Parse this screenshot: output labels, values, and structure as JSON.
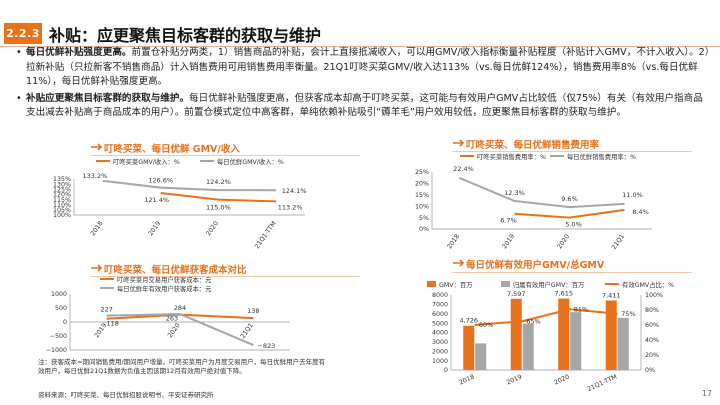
{
  "header": {
    "section_number": "2.2.3",
    "title": "补贴：应更聚焦目标客群的获取与维护"
  },
  "bullets": [
    {
      "lead": "每日优鲜补贴强度更高。",
      "text": "前置仓补贴分两类，1）销售商品的补贴，会计上直接抵减收入，可以用GMV/收入指标衡量补贴程度（补贴计入GMV，不计入收入）。2）拉新补贴（只拉新客不销售商品）计入销售费用可用销售费用率衡量。21Q1叮咚买菜GMV/收入达113%（vs.每日优鲜124%），销售费用率8%（vs.每日优鲜11%），每日优鲜补贴强度更高。"
    },
    {
      "lead": "补贴应更聚焦目标客群的获取与维护。",
      "text": "每日优鲜补贴强度更高，但获客成本却高于叮咚买菜，这可能与有效用户GMV占比较低（仅75%）有关（有效用户指商品支出减去补贴高于商品成本的用户）。前置仓模式定位中高客群，单纯依赖补贴吸引“薅羊毛”用户效用较低，应更聚焦目标客群的获取与维护。"
    }
  ],
  "chart_data": [
    {
      "type": "line",
      "title": "叮咚买菜、每日优鲜 GMV/收入",
      "categories": [
        "2018",
        "2019",
        "2020",
        "21Q1-TTM"
      ],
      "series": [
        {
          "name": "叮咚买菜GMV/收入：%",
          "values": [
            null,
            121.4,
            115.0,
            113.2
          ],
          "labels": [
            "",
            "121.4%",
            "115.0%",
            "113.2%"
          ],
          "color": "#e8711c"
        },
        {
          "name": "每日优鲜GMV/收入：%",
          "values": [
            133.2,
            126.6,
            124.2,
            124.1
          ],
          "labels": [
            "133.2%",
            "126.6%",
            "124.2%",
            "124.1%"
          ],
          "color": "#a6a6a6"
        }
      ],
      "ylim": [
        100,
        135
      ],
      "yticks": [
        "100%",
        "105%",
        "110%",
        "115%",
        "120%",
        "125%",
        "130%",
        "135%"
      ]
    },
    {
      "type": "line",
      "title": "叮咚买菜、每日优鲜销售费用率",
      "categories": [
        "2018",
        "2019",
        "2020",
        "21Q1"
      ],
      "series": [
        {
          "name": "叮咚买菜销售费用率：%",
          "values": [
            null,
            6.7,
            5.0,
            8.4
          ],
          "labels": [
            "",
            "6.7%",
            "5.0%",
            "8.4%"
          ],
          "color": "#e8711c"
        },
        {
          "name": "每日优鲜销售费用率：%",
          "values": [
            22.4,
            12.3,
            9.6,
            11.0
          ],
          "labels": [
            "22.4%",
            "12.3%",
            "9.6%",
            "11.0%"
          ],
          "color": "#a6a6a6"
        }
      ],
      "ylim": [
        0,
        25
      ],
      "yticks": [
        "0%",
        "5%",
        "10%",
        "15%",
        "20%",
        "25%"
      ]
    },
    {
      "type": "line",
      "title": "叮咚买菜、每日优鲜获客成本对比",
      "categories": [
        "2019",
        "2020",
        "21Q1"
      ],
      "series": [
        {
          "name": "叮咚买菜月交易用户获客成本：元",
          "values": [
            118,
            263,
            138
          ],
          "labels": [
            "118",
            "263",
            "138"
          ],
          "color": "#e8711c"
        },
        {
          "name": "每日优鲜年有效用户获客成本：元",
          "values": [
            227,
            284,
            -823
          ],
          "labels": [
            "227",
            "284",
            "−823"
          ],
          "color": "#a6a6a6"
        }
      ],
      "ylim": [
        -1000,
        1000
      ],
      "yticks": [
        "−1000",
        "−500",
        "0",
        "500",
        "1000"
      ]
    },
    {
      "type": "bar",
      "title": "每日优鲜有效用户GMV/总GMV",
      "categories": [
        "2018",
        "2019",
        "2020",
        "21Q1-TTM"
      ],
      "series": [
        {
          "name": "GMV：百万",
          "kind": "bar",
          "axis": "left",
          "values": [
            4726,
            7597,
            7615,
            7411
          ],
          "labels": [
            "4,726",
            "7,597",
            "7,615",
            "7,411"
          ],
          "color": "#e8711c"
        },
        {
          "name": "归属有效用户GMV：百万",
          "kind": "bar",
          "axis": "left",
          "values": [
            2840,
            4940,
            6170,
            5560
          ],
          "color": "#a6a6a6"
        },
        {
          "name": "有效GMV占比：%",
          "kind": "line",
          "axis": "right",
          "values": [
            60,
            65,
            81,
            75
          ],
          "labels": [
            "60%",
            "65%",
            "81%",
            "75%"
          ],
          "color": "#e8711c"
        }
      ],
      "ylim": [
        0,
        8000
      ],
      "yticks": [
        "0",
        "1000",
        "2000",
        "3000",
        "4000",
        "5000",
        "6000",
        "7000",
        "8000"
      ],
      "y2lim": [
        0,
        100
      ],
      "y2ticks": [
        "0%",
        "20%",
        "40%",
        "60%",
        "80%",
        "100%"
      ]
    }
  ],
  "note": "注：获客成本=期间销售费用/期间用户增量。叮咚买菜用户为月度交易用户，每日优鲜用户去年度有效用户，每日优鲜21Q1数据为负值主因该期12月有效用户绝对值下降。",
  "source": "资料来源：叮咚买菜、每日优鲜招股说明书、平安证券研究所",
  "page_number": "17",
  "colors": {
    "accent": "#e8711c",
    "gray": "#a6a6a6"
  }
}
